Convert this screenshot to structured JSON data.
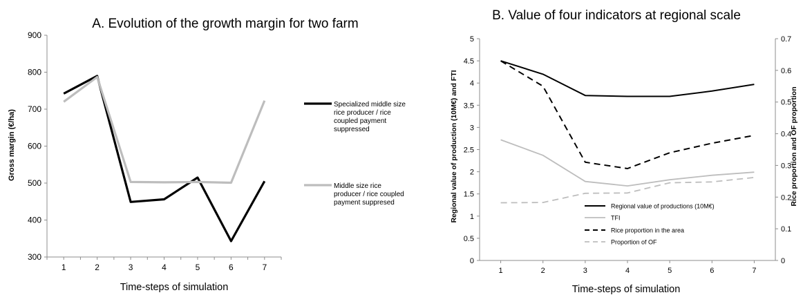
{
  "chart_data": [
    {
      "type": "line",
      "title": "A. Evolution of the growth margin for two farm",
      "xlabel": "Time-steps of simulation",
      "ylabel": "Gross margin (€/ha)",
      "x": [
        1,
        2,
        3,
        4,
        5,
        6,
        7
      ],
      "ylim": [
        300,
        900
      ],
      "yticks": [
        300,
        400,
        500,
        600,
        700,
        800,
        900
      ],
      "grid": false,
      "legend": "right",
      "series": [
        {
          "name_lines": [
            "Specialized middle size",
            "rice producer  / rice",
            "coupled payment",
            "suppressed"
          ],
          "values": [
            742,
            790,
            449,
            456,
            515,
            343,
            505
          ],
          "color": "#000000"
        },
        {
          "name_lines": [
            "Middle size rice",
            "producer  / rice coupled",
            "payment suppresed"
          ],
          "values": [
            720,
            787,
            503,
            502,
            503,
            501,
            723
          ],
          "color": "#bdbdbd"
        }
      ]
    },
    {
      "type": "line",
      "title": "B. Value of four indicators at regional scale",
      "xlabel": "Time-steps of simulation",
      "ylabel": "Regional value of production (10M€) and FTI",
      "y2label": "Rice proportion and OF proportion",
      "x": [
        1,
        2,
        3,
        4,
        5,
        6,
        7
      ],
      "ylim": [
        0,
        5
      ],
      "yticks": [
        "0",
        "0.5",
        "1",
        "1.5",
        "2",
        "2.5",
        "3",
        "3.5",
        "4",
        "4.5",
        "5"
      ],
      "y2lim": [
        0,
        0.7
      ],
      "y2ticks": [
        "0",
        "0.1",
        "0.2",
        "0.3",
        "0.4",
        "0.5",
        "0.6",
        "0.7"
      ],
      "grid": false,
      "legend": "bottom-center inside plot",
      "series": [
        {
          "name": "Regional value of productions (10M€)",
          "axis": "left",
          "values": [
            4.5,
            4.2,
            3.72,
            3.7,
            3.7,
            3.82,
            3.97
          ],
          "color": "#000000",
          "dash": "solid"
        },
        {
          "name": "TFI",
          "axis": "left",
          "values": [
            2.72,
            2.37,
            1.78,
            1.68,
            1.82,
            1.92,
            1.99
          ],
          "color": "#bdbdbd",
          "dash": "solid"
        },
        {
          "name": "Rice proportion in the area",
          "axis": "right",
          "values": [
            0.63,
            0.55,
            0.31,
            0.29,
            0.34,
            0.37,
            0.395
          ],
          "color": "#000000",
          "dash": "dashed"
        },
        {
          "name": "Proportion of OF",
          "axis": "right",
          "values": [
            0.182,
            0.183,
            0.212,
            0.213,
            0.245,
            0.248,
            0.262
          ],
          "color": "#bdbdbd",
          "dash": "dashed"
        }
      ]
    }
  ]
}
